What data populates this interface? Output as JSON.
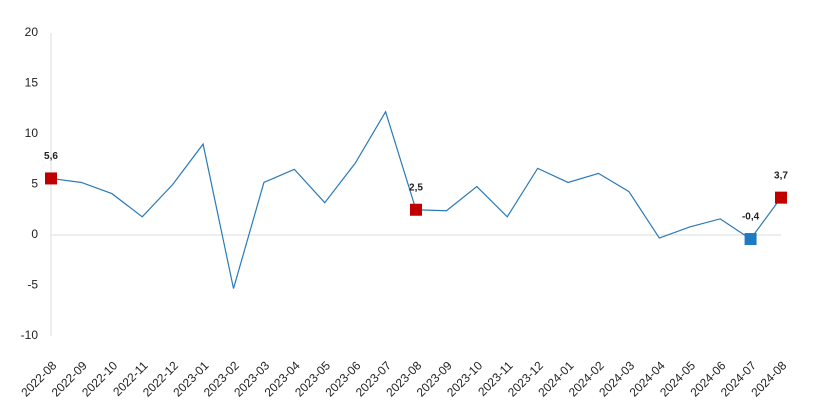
{
  "chart_data": {
    "type": "line",
    "categories": [
      "2022-08",
      "2022-09",
      "2022-10",
      "2022-11",
      "2022-12",
      "2023-01",
      "2023-02",
      "2023-03",
      "2023-04",
      "2023-05",
      "2023-06",
      "2023-07",
      "2023-08",
      "2023-09",
      "2023-10",
      "2023-11",
      "2023-12",
      "2024-01",
      "2024-02",
      "2024-03",
      "2024-04",
      "2024-05",
      "2024-06",
      "2024-07",
      "2024-08"
    ],
    "values": [
      5.6,
      5.2,
      4.1,
      1.8,
      5.0,
      9.0,
      -5.3,
      5.2,
      6.5,
      3.2,
      7.1,
      12.2,
      2.5,
      2.4,
      4.8,
      1.8,
      6.6,
      5.2,
      6.1,
      4.3,
      -0.3,
      0.8,
      1.6,
      -0.4,
      3.7
    ],
    "value_labels": [
      "5,6",
      null,
      null,
      null,
      null,
      null,
      null,
      null,
      null,
      null,
      null,
      null,
      "2,5",
      null,
      null,
      null,
      null,
      null,
      null,
      null,
      null,
      null,
      null,
      "-0,4",
      "3,7"
    ],
    "marker_colors": [
      "#c00000",
      null,
      null,
      null,
      null,
      null,
      null,
      null,
      null,
      null,
      null,
      null,
      "#c00000",
      null,
      null,
      null,
      null,
      null,
      null,
      null,
      null,
      null,
      null,
      "#1f7bc1",
      "#c00000"
    ],
    "color": "#2a7ab8",
    "ylim": [
      -10,
      20
    ],
    "yticks": [
      20,
      15,
      10,
      5,
      0,
      -5,
      -10
    ],
    "grid": false
  }
}
